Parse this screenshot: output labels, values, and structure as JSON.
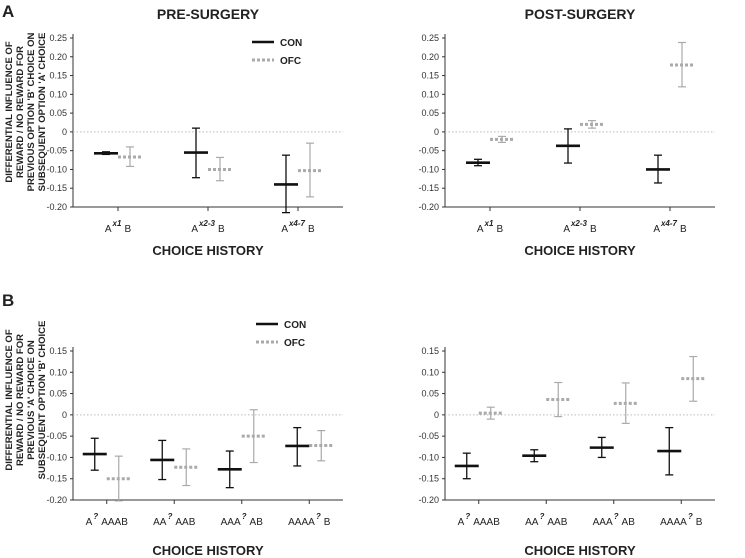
{
  "figure": {
    "panel_a_letter": "A",
    "panel_b_letter": "B",
    "ylabel_a": [
      "DIFFERENTIAL INFLUENCE OF",
      "REWARD / NO REWARD FOR",
      "PREVIOUS OPTION 'B' CHOICE ON",
      "SUBSEQUENT OPTION 'A' CHOICE"
    ],
    "ylabel_b": [
      "DIFFERENTIAL INFLUENCE OF",
      "REWARD / NO REWARD FOR",
      "PREVIOUS 'A' CHOICE ON",
      "SUBSEQUENT OPTION 'B' CHOICE"
    ],
    "colors": {
      "con": "#111111",
      "ofc": "#aaaaaa",
      "zero_line": "#bbbbbb",
      "axis": "#333333"
    }
  },
  "chart_data": [
    {
      "type": "errorbar",
      "panel": "A",
      "title": "PRE-SURGERY",
      "xlabel": "CHOICE HISTORY",
      "ylabel": "DIFFERENTIAL INFLUENCE OF REWARD / NO REWARD FOR PREVIOUS OPTION 'B' CHOICE ON SUBSEQUENT OPTION 'A' CHOICE",
      "ylim": [
        -0.2,
        0.25
      ],
      "yticks": [
        "0.25",
        "0.20",
        "0.15",
        "0.10",
        "0.05",
        "0",
        "-0.05",
        "-0.10",
        "-0.15",
        "-0.20"
      ],
      "categories": [
        {
          "base": "A",
          "sup": "x1",
          "tail": "B"
        },
        {
          "base": "A",
          "sup": "x2-3",
          "tail": "B"
        },
        {
          "base": "A",
          "sup": "x4-7",
          "tail": "B"
        }
      ],
      "legend": true,
      "series": [
        {
          "name": "CON",
          "style": "solid",
          "mean": [
            -0.057,
            -0.055,
            -0.14
          ],
          "lo": [
            -0.06,
            -0.122,
            -0.215
          ],
          "hi": [
            -0.053,
            0.01,
            -0.062
          ]
        },
        {
          "name": "OFC",
          "style": "dashed",
          "mean": [
            -0.067,
            -0.1,
            -0.103
          ],
          "lo": [
            -0.092,
            -0.13,
            -0.173
          ],
          "hi": [
            -0.04,
            -0.068,
            -0.03
          ]
        }
      ]
    },
    {
      "type": "errorbar",
      "panel": "A",
      "title": "POST-SURGERY",
      "xlabel": "CHOICE HISTORY",
      "ylim": [
        -0.2,
        0.25
      ],
      "yticks": [
        "0.25",
        "0.20",
        "0.15",
        "0.10",
        "0.05",
        "0",
        "-0.05",
        "-0.10",
        "-0.15",
        "-0.20"
      ],
      "categories": [
        {
          "base": "A",
          "sup": "x1",
          "tail": "B"
        },
        {
          "base": "A",
          "sup": "x2-3",
          "tail": "B"
        },
        {
          "base": "A",
          "sup": "x4-7",
          "tail": "B"
        }
      ],
      "legend": false,
      "series": [
        {
          "name": "CON",
          "style": "solid",
          "mean": [
            -0.082,
            -0.037,
            -0.1
          ],
          "lo": [
            -0.09,
            -0.083,
            -0.136
          ],
          "hi": [
            -0.073,
            0.008,
            -0.062
          ]
        },
        {
          "name": "OFC",
          "style": "dashed",
          "mean": [
            -0.02,
            0.02,
            0.178
          ],
          "lo": [
            -0.028,
            0.01,
            0.12
          ],
          "hi": [
            -0.012,
            0.03,
            0.238
          ]
        }
      ]
    },
    {
      "type": "errorbar",
      "panel": "B",
      "title": "",
      "xlabel": "CHOICE HISTORY",
      "ylabel": "DIFFERENTIAL INFLUENCE OF REWARD / NO REWARD FOR PREVIOUS 'A' CHOICE ON SUBSEQUENT OPTION 'B' CHOICE",
      "ylim": [
        -0.2,
        0.15
      ],
      "yticks": [
        "0.15",
        "0.10",
        "0.05",
        "0",
        "-0.05",
        "-0.10",
        "-0.15",
        "-0.20"
      ],
      "categories": [
        {
          "base": "A",
          "sup": "?",
          "tail": "AAAB"
        },
        {
          "base": "AA",
          "sup": "?",
          "tail": "AAB"
        },
        {
          "base": "AAA",
          "sup": "?",
          "tail": "AB"
        },
        {
          "base": "AAAA",
          "sup": "?",
          "tail": "B"
        }
      ],
      "legend": true,
      "series": [
        {
          "name": "CON",
          "style": "solid",
          "mean": [
            -0.092,
            -0.106,
            -0.128,
            -0.073
          ],
          "lo": [
            -0.13,
            -0.152,
            -0.171,
            -0.12
          ],
          "hi": [
            -0.055,
            -0.06,
            -0.085,
            -0.03
          ]
        },
        {
          "name": "OFC",
          "style": "dashed",
          "mean": [
            -0.15,
            -0.123,
            -0.05,
            -0.072
          ],
          "lo": [
            -0.202,
            -0.166,
            -0.112,
            -0.108
          ],
          "hi": [
            -0.097,
            -0.08,
            0.012,
            -0.037
          ]
        }
      ]
    },
    {
      "type": "errorbar",
      "panel": "B",
      "title": "",
      "xlabel": "CHOICE HISTORY",
      "ylim": [
        -0.2,
        0.15
      ],
      "yticks": [
        "0.15",
        "0.10",
        "0.05",
        "0",
        "-0.05",
        "-0.10",
        "-0.15",
        "-0.20"
      ],
      "categories": [
        {
          "base": "A",
          "sup": "?",
          "tail": "AAAB"
        },
        {
          "base": "AA",
          "sup": "?",
          "tail": "AAB"
        },
        {
          "base": "AAA",
          "sup": "?",
          "tail": "AB"
        },
        {
          "base": "AAAA",
          "sup": "?",
          "tail": "B"
        }
      ],
      "legend": false,
      "series": [
        {
          "name": "CON",
          "style": "solid",
          "mean": [
            -0.12,
            -0.096,
            -0.077,
            -0.085
          ],
          "lo": [
            -0.15,
            -0.11,
            -0.1,
            -0.141
          ],
          "hi": [
            -0.09,
            -0.082,
            -0.053,
            -0.03
          ]
        },
        {
          "name": "OFC",
          "style": "dashed",
          "mean": [
            0.004,
            0.036,
            0.027,
            0.085
          ],
          "lo": [
            -0.01,
            -0.004,
            -0.02,
            0.032
          ],
          "hi": [
            0.018,
            0.076,
            0.075,
            0.137
          ]
        }
      ]
    }
  ]
}
